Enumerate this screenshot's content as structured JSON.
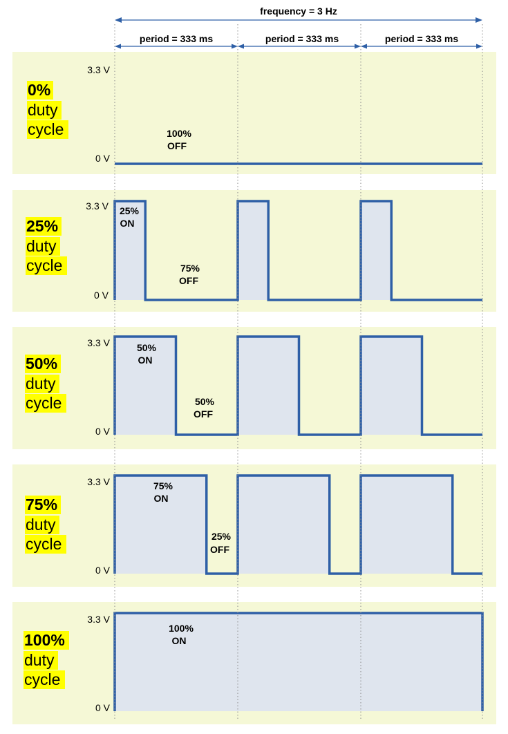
{
  "frequency_label": "frequency = 3 Hz",
  "period_labels": [
    "period = 333 ms",
    "period = 333 ms",
    "period = 333 ms"
  ],
  "voltage_high": "3.3 V",
  "voltage_low": "0 V",
  "colors": {
    "panel_background": "#f5f8d6",
    "signal_line": "#2e5fa6",
    "signal_fill": "#dfe5ee",
    "highlight": "#ffff00",
    "arrow": "#2e5fa6"
  },
  "panels": [
    {
      "duty_percent": "0%",
      "duty_word1": "duty",
      "duty_word2": "cycle",
      "duty_value": 0,
      "on_line1": "",
      "on_line2": "",
      "off_line1": "100%",
      "off_line2": "OFF"
    },
    {
      "duty_percent": "25%",
      "duty_word1": "duty",
      "duty_word2": "cycle",
      "duty_value": 0.25,
      "on_line1": "25%",
      "on_line2": "ON",
      "off_line1": "75%",
      "off_line2": "OFF"
    },
    {
      "duty_percent": "50%",
      "duty_word1": "duty",
      "duty_word2": "cycle",
      "duty_value": 0.5,
      "on_line1": "50%",
      "on_line2": "ON",
      "off_line1": "50%",
      "off_line2": "OFF"
    },
    {
      "duty_percent": "75%",
      "duty_word1": "duty",
      "duty_word2": "cycle",
      "duty_value": 0.75,
      "on_line1": "75%",
      "on_line2": "ON",
      "off_line1": "25%",
      "off_line2": "OFF"
    },
    {
      "duty_percent": "100%",
      "duty_word1": "duty",
      "duty_word2": "cycle",
      "duty_value": 1,
      "on_line1": "100%",
      "on_line2": "ON",
      "off_line1": "",
      "off_line2": ""
    }
  ]
}
